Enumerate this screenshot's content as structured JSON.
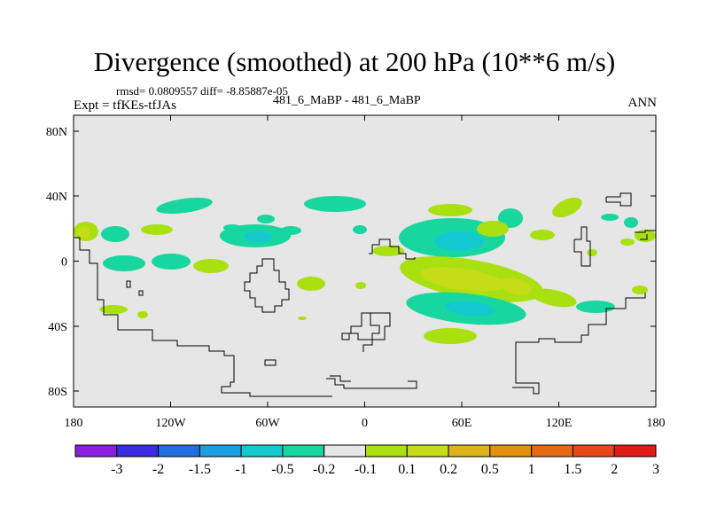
{
  "title": "Divergence (smoothed) at 200 hPa (10**6 m/s)",
  "stats": "rmsd= 0.0809557 diff= -8.85887e-05",
  "left_label": "Expt = tfKEs-tfJAs",
  "center_label": "481_6_MaBP - 481_6_MaBP",
  "right_label": "ANN",
  "axes": {
    "x_ticks": [
      "180",
      "120W",
      "60W",
      "0",
      "60E",
      "120E",
      "180"
    ],
    "y_ticks": [
      "80N",
      "40N",
      "0",
      "40S",
      "80S"
    ],
    "lon_range": [
      -180,
      180
    ],
    "lat_range": [
      -90,
      90
    ]
  },
  "colorbar": {
    "colors": [
      "#8a1fe0",
      "#3a2ce0",
      "#1f6fe0",
      "#1aa0e0",
      "#14c8d0",
      "#18d6a0",
      "#e6e6e6",
      "#a8e010",
      "#c6dc18",
      "#dcb41a",
      "#e69010",
      "#e66a12",
      "#e6481a",
      "#e01a14"
    ],
    "labels": [
      "-3",
      "-2",
      "-1.5",
      "-1",
      "-0.5",
      "-0.2",
      "-0.1",
      "0.1",
      "0.2",
      "0.5",
      "1",
      "1.5",
      "2",
      "3"
    ]
  }
}
